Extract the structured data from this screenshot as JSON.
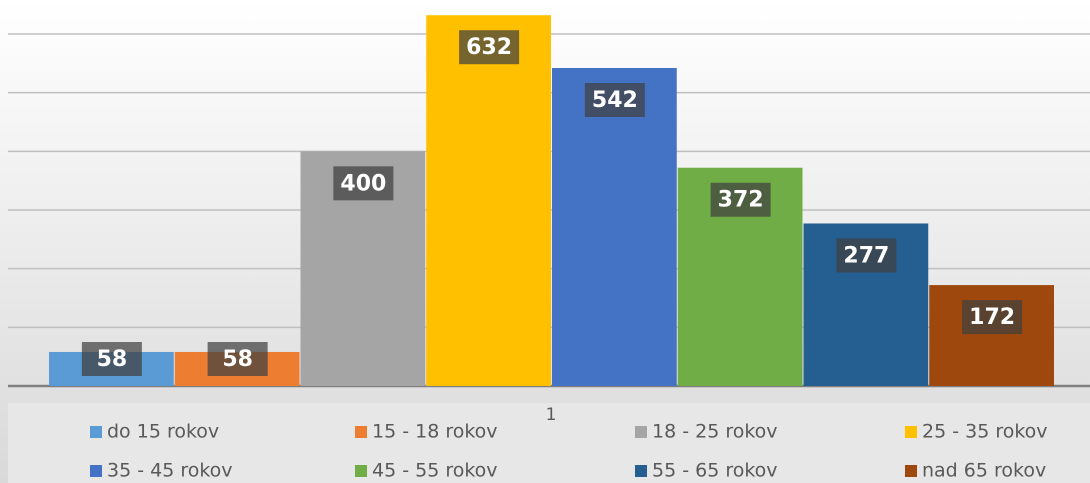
{
  "chart_data": {
    "type": "bar",
    "categories": [
      "1"
    ],
    "series": [
      {
        "name": "do 15 rokov",
        "color": "#5b9bd5",
        "values": [
          58
        ]
      },
      {
        "name": "15 - 18 rokov",
        "color": "#ed7d31",
        "values": [
          58
        ]
      },
      {
        "name": "18 - 25 rokov",
        "color": "#a5a5a5",
        "values": [
          400
        ]
      },
      {
        "name": "25 - 35 rokov",
        "color": "#ffc000",
        "values": [
          632
        ]
      },
      {
        "name": "35 - 45 rokov",
        "color": "#4472c4",
        "values": [
          542
        ]
      },
      {
        "name": "45 - 55 rokov",
        "color": "#70ad47",
        "values": [
          372
        ]
      },
      {
        "name": "55 - 65 rokov",
        "color": "#255e91",
        "values": [
          277
        ]
      },
      {
        "name": "nad 65 rokov",
        "color": "#9e480e",
        "values": [
          172
        ]
      }
    ],
    "ylim": [
      0,
      650
    ],
    "yticks": [
      0,
      100,
      200,
      300,
      400,
      500,
      600
    ],
    "grid": true,
    "legend": "bottom"
  }
}
